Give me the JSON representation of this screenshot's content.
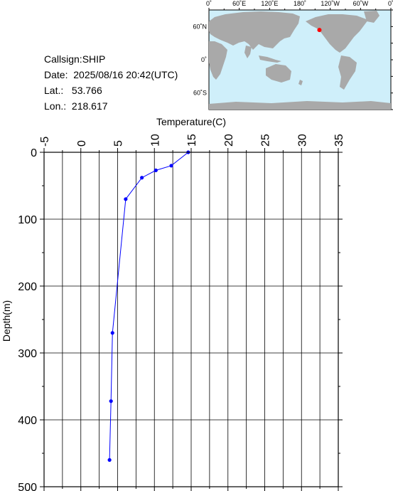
{
  "info": {
    "callsign": "Callsign:SHIP",
    "date": "Date:  2025/08/16 20:42(UTC)",
    "lat": "Lat.:   53.766",
    "lon": "Lon.:  218.617"
  },
  "map": {
    "lon_labels": [
      "0˚",
      "60˚E",
      "120˚E",
      "180˚",
      "120˚W",
      "60˚W",
      "0˚"
    ],
    "lat_labels": [
      "60˚N",
      "0˚",
      "60˚S"
    ],
    "ocean_color": "#cfeffa",
    "land_color": "#a9a9a9",
    "marker_color": "#ff0000",
    "marker": {
      "lon": 218.617,
      "lat": 53.766
    }
  },
  "chart_data": {
    "type": "line",
    "title": "",
    "xlabel": "Temperature(C)",
    "ylabel": "Depth(m)",
    "xlim": [
      -5,
      35
    ],
    "ylim": [
      0,
      500
    ],
    "x_ticks": [
      -5,
      0,
      5,
      10,
      15,
      20,
      25,
      30,
      35
    ],
    "y_ticks": [
      0,
      100,
      200,
      300,
      400,
      500
    ],
    "y_inverted": true,
    "grid": true,
    "line_color": "#0000ff",
    "series": [
      {
        "x": [
          14.6,
          12.3,
          10.2,
          8.3,
          6.1,
          4.3,
          4.1,
          3.9
        ],
        "y": [
          0,
          20,
          27,
          38,
          70,
          270,
          372,
          460
        ]
      }
    ]
  }
}
